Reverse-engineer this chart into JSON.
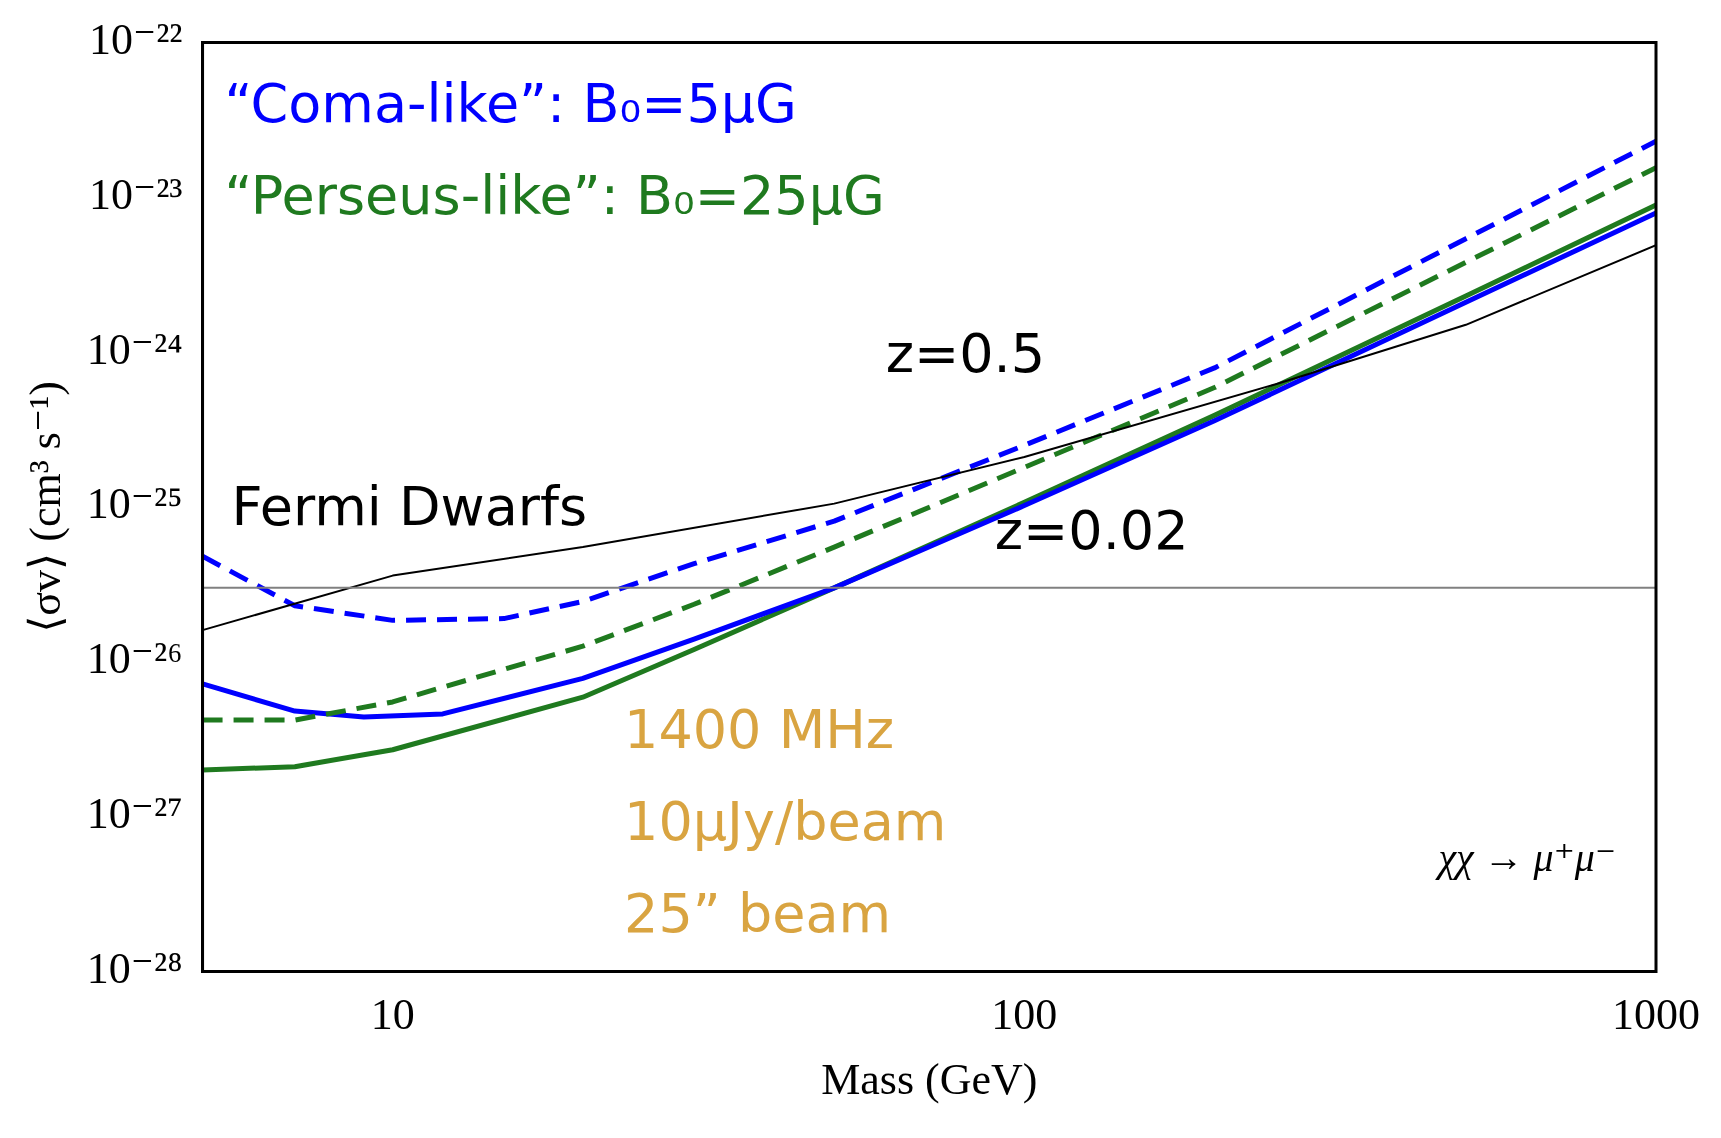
{
  "chart_data": {
    "type": "line",
    "xlabel": "Mass (GeV)",
    "ylabel": "⟨σv⟩ (cm³ s⁻¹)",
    "log": "xy",
    "xlim": [
      5,
      1000
    ],
    "xticks": [
      10,
      100,
      1000
    ],
    "ylim": [
      1e-28,
      1e-22
    ],
    "yticks": [
      {
        "value": 1e-28,
        "label": "10⁻²⁸"
      },
      {
        "value": 1e-27,
        "label": "10⁻²⁷"
      },
      {
        "value": 1e-26,
        "label": "10⁻²⁶"
      },
      {
        "value": 1e-25,
        "label": "10⁻²⁵"
      },
      {
        "value": 1e-24,
        "label": "10⁻²⁴"
      },
      {
        "value": 1e-23,
        "label": "10⁻²³"
      },
      {
        "value": 1e-22,
        "label": "10⁻²²"
      }
    ],
    "grid": false,
    "legend": "top left",
    "marker": "none",
    "series": [
      {
        "color": "#000000",
        "x": [
          5,
          10,
          20,
          50,
          100,
          250,
          500,
          1000
        ],
        "values": [
          1.6e-26,
          3.6e-26,
          5.5e-26,
          1.05e-25,
          2.1e-25,
          6.2e-25,
          1.5e-24,
          4.9e-24
        ]
      },
      {
        "name": "“Coma-like”: B₀=5μG",
        "color": "#0000ff",
        "line_style": "dashed",
        "x": [
          5,
          7,
          10,
          15,
          20,
          30,
          50,
          100,
          200,
          500,
          1000
        ],
        "values": [
          4.8e-26,
          2.3e-26,
          1.85e-26,
          1.9e-26,
          2.45e-26,
          4.3e-26,
          8.1e-26,
          2.5e-25,
          7.9e-25,
          5.4e-24,
          2.3e-23
        ]
      },
      {
        "name": "“Perseus-like”: B₀=25μG",
        "color": "#1f7a1f",
        "line_style": "dashed",
        "x": [
          5,
          7,
          10,
          20,
          30,
          50,
          100,
          200,
          500,
          1000
        ],
        "values": [
          4.2e-27,
          4.2e-27,
          5.5e-27,
          1.26e-26,
          2.35e-26,
          5.5e-26,
          1.8e-25,
          5.9e-25,
          3.8e-24,
          1.55e-23
        ]
      },
      {
        "color": "#0000ff",
        "line_style": "solid",
        "x": [
          5,
          7,
          9,
          12,
          20,
          30,
          50,
          100,
          200,
          500,
          1000
        ],
        "values": [
          7.2e-27,
          4.8e-27,
          4.4e-27,
          4.6e-27,
          7.8e-27,
          1.4e-26,
          3e-26,
          1.02e-25,
          3.6e-25,
          2.1e-24,
          7.9e-24
        ]
      },
      {
        "color": "#1f7a1f",
        "line_style": "solid",
        "x": [
          5,
          7,
          10,
          20,
          30,
          50,
          100,
          200,
          500,
          1000
        ],
        "values": [
          2e-27,
          2.1e-27,
          2.7e-27,
          5.9e-27,
          1.2e-26,
          3e-26,
          1.07e-25,
          3.9e-25,
          2.3e-24,
          8.9e-24
        ]
      }
    ],
    "ref_lines": [
      {
        "axis": "y",
        "value": 3e-26,
        "color": "#808080"
      }
    ],
    "annotations": [
      "Fermi Dwarfs",
      "z=0.5",
      "z=0.02",
      "1400 MHz",
      "10μJy/beam",
      "25” beam",
      "χχ → μ⁺μ⁻"
    ]
  }
}
